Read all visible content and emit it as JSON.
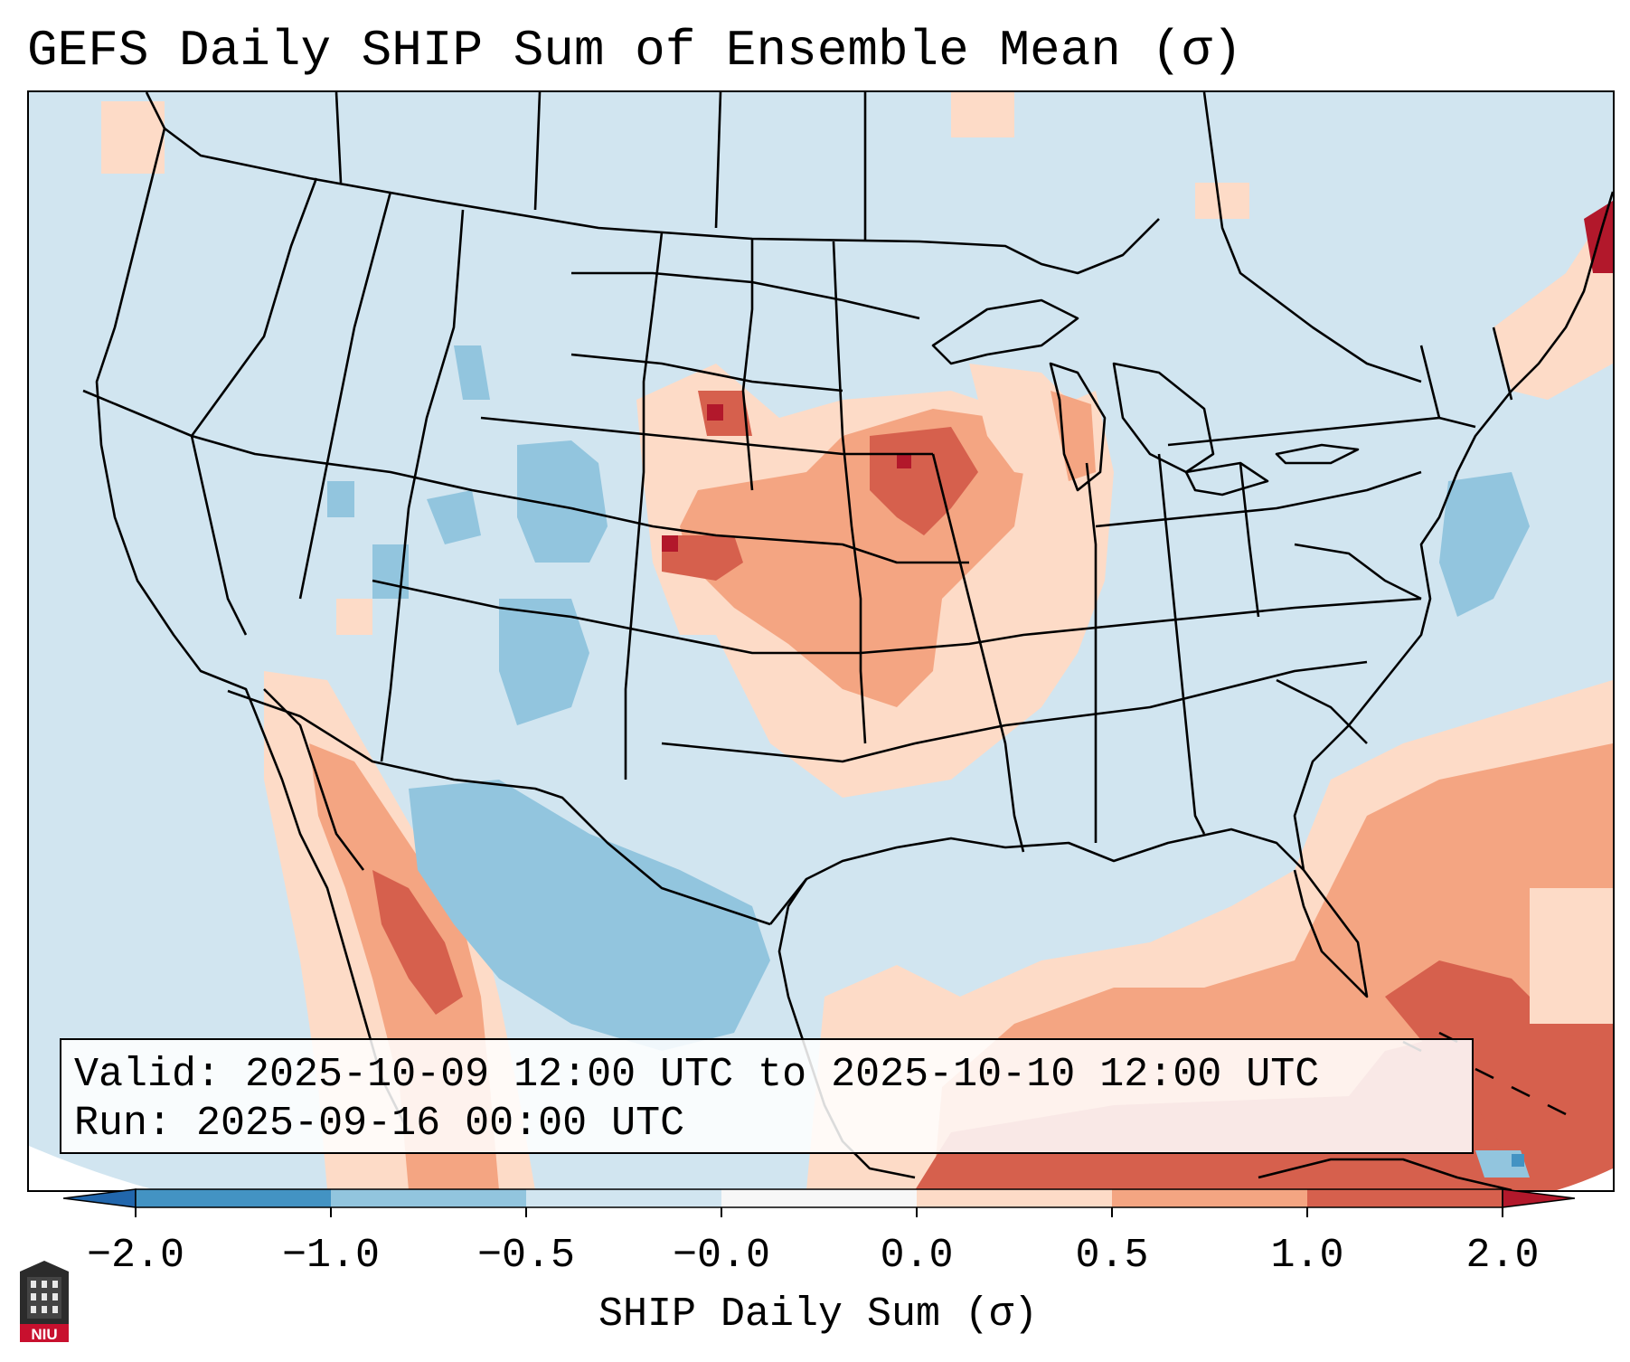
{
  "title": "GEFS Daily SHIP Sum of Ensemble Mean (σ)",
  "info": {
    "valid_label": "Valid:",
    "valid_value": "2025-10-09 12:00 UTC to 2025-10-10 12:00 UTC",
    "run_label": "Run:",
    "run_value": "2025-09-16 00:00 UTC"
  },
  "colorbar": {
    "label": "SHIP Daily Sum (σ)",
    "ticks": [
      "−2.0",
      "−1.0",
      "−0.5",
      "−0.0",
      "0.0",
      "0.5",
      "1.0",
      "2.0"
    ],
    "colors": [
      "#4393c3",
      "#92c5de",
      "#d1e5f0",
      "#f7f7f7",
      "#fddbc7",
      "#f4a582",
      "#d6604d",
      "#b2182b"
    ],
    "extend_low_color": "#2166ac",
    "extend_high_color": "#b2182b"
  },
  "logo": {
    "text": "NIU"
  },
  "colors": {
    "ocean_background": "#d1e5f0",
    "border": "#000000"
  }
}
